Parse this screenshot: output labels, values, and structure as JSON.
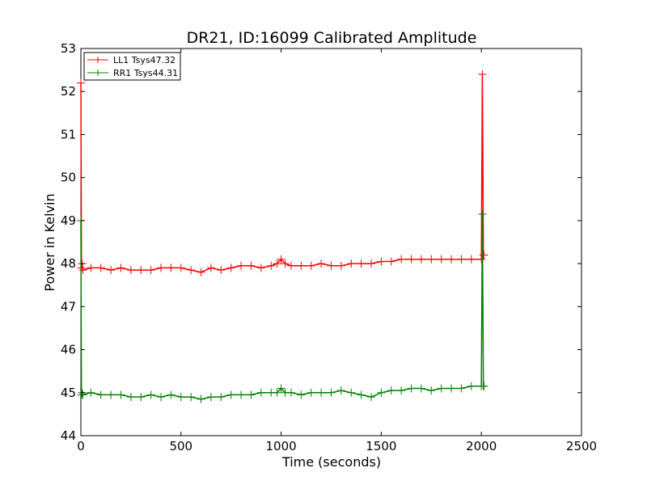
{
  "chart_data": {
    "type": "line",
    "title": "DR21, ID:16099 Calibrated Amplitude",
    "xlabel": "Time (seconds)",
    "ylabel": "Power in Kelvin",
    "xlim": [
      0,
      2500
    ],
    "ylim": [
      44,
      53
    ],
    "xticks": [
      "0",
      "500",
      "1000",
      "1500",
      "2000",
      "2500"
    ],
    "yticks": [
      "44",
      "45",
      "46",
      "47",
      "48",
      "49",
      "50",
      "51",
      "52",
      "53"
    ],
    "grid": false,
    "legend_position": "top-left",
    "marker": "+",
    "series": [
      {
        "name": "LL1 Tsys47.32",
        "color": "#ff0000",
        "x": [
          0,
          3,
          6,
          10,
          50,
          100,
          150,
          200,
          250,
          300,
          350,
          400,
          450,
          500,
          550,
          600,
          650,
          700,
          750,
          800,
          850,
          900,
          950,
          980,
          1000,
          1020,
          1050,
          1100,
          1150,
          1200,
          1250,
          1300,
          1350,
          1400,
          1450,
          1500,
          1550,
          1600,
          1650,
          1700,
          1750,
          1800,
          1850,
          1900,
          1950,
          2000,
          2005,
          2010,
          2013
        ],
        "y": [
          52.2,
          47.9,
          48.0,
          47.85,
          47.9,
          47.9,
          47.85,
          47.9,
          47.85,
          47.85,
          47.85,
          47.9,
          47.9,
          47.9,
          47.85,
          47.8,
          47.9,
          47.85,
          47.9,
          47.95,
          47.95,
          47.9,
          47.95,
          48.0,
          48.1,
          48.0,
          47.95,
          47.95,
          47.95,
          48.0,
          47.95,
          47.95,
          48.0,
          48.0,
          48.0,
          48.05,
          48.05,
          48.1,
          48.1,
          48.1,
          48.1,
          48.1,
          48.1,
          48.1,
          48.1,
          48.1,
          52.4,
          48.2,
          48.2
        ]
      },
      {
        "name": "RR1 Tsys44.31",
        "color": "#008000",
        "x": [
          0,
          3,
          6,
          10,
          50,
          100,
          150,
          200,
          250,
          300,
          350,
          400,
          450,
          500,
          550,
          600,
          650,
          700,
          750,
          800,
          850,
          900,
          950,
          980,
          1000,
          1020,
          1050,
          1100,
          1150,
          1200,
          1250,
          1300,
          1350,
          1400,
          1450,
          1500,
          1550,
          1600,
          1650,
          1700,
          1750,
          1800,
          1850,
          1900,
          1950,
          2000,
          2005,
          2010,
          2013
        ],
        "y": [
          49.0,
          44.95,
          45.0,
          44.95,
          45.0,
          44.95,
          44.95,
          44.95,
          44.9,
          44.9,
          44.95,
          44.9,
          44.95,
          44.9,
          44.9,
          44.85,
          44.9,
          44.9,
          44.95,
          44.95,
          44.95,
          45.0,
          45.0,
          45.0,
          45.1,
          45.0,
          45.0,
          44.95,
          45.0,
          45.0,
          45.0,
          45.05,
          45.0,
          44.95,
          44.9,
          45.0,
          45.05,
          45.05,
          45.1,
          45.1,
          45.05,
          45.1,
          45.1,
          45.1,
          45.15,
          45.15,
          49.15,
          45.15,
          45.15
        ]
      }
    ]
  }
}
